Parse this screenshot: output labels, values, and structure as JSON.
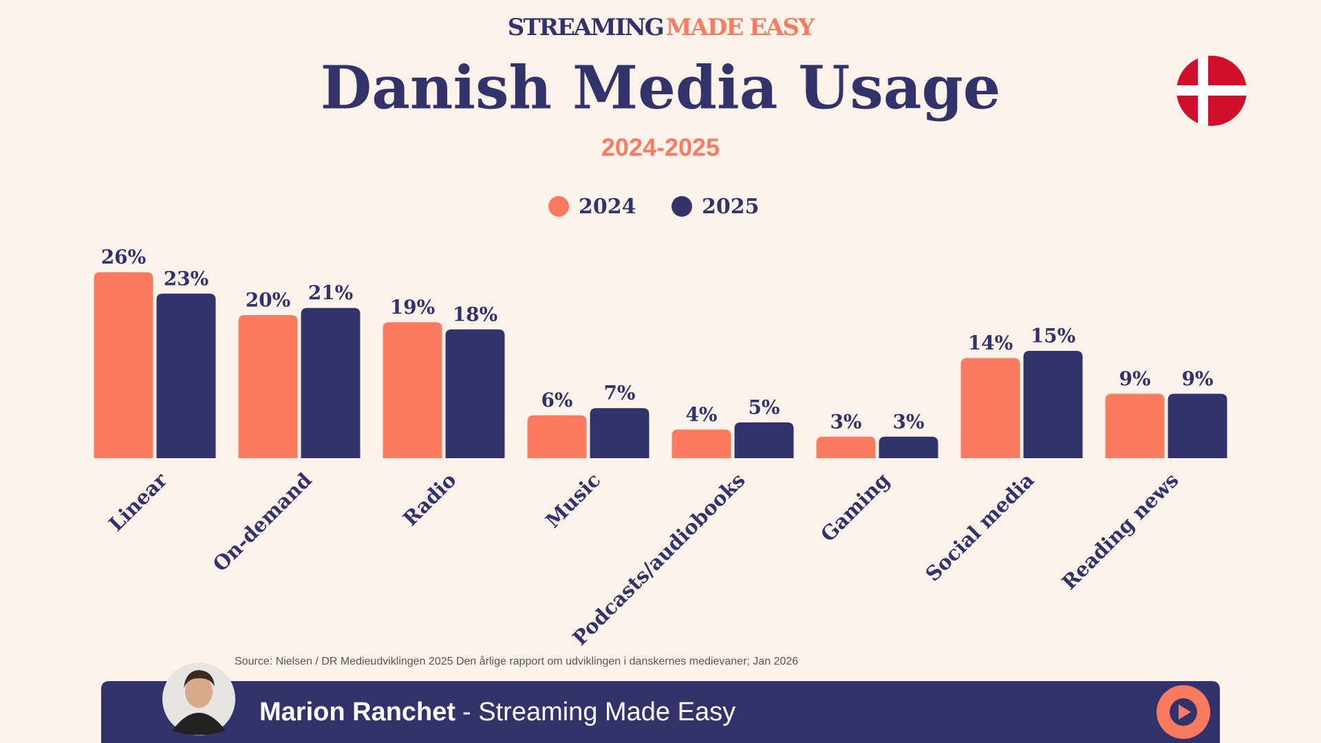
{
  "header": {
    "brand_left": "STREAMING",
    "brand_right": "MADE EASY"
  },
  "chart_data": {
    "type": "bar",
    "title": "Danish Media Usage",
    "subtitle": "2024-2025",
    "categories": [
      "Linear",
      "On-demand",
      "Radio",
      "Music",
      "Podcasts/audiobooks",
      "Gaming",
      "Social media",
      "Reading news"
    ],
    "series": [
      {
        "name": "2024",
        "color": "#fb7b61",
        "values": [
          26,
          20,
          19,
          6,
          4,
          3,
          14,
          9
        ],
        "value_labels": [
          "26%",
          "20%",
          "19%",
          "6%",
          "4%",
          "3%",
          "14%",
          "9%"
        ]
      },
      {
        "name": "2025",
        "color": "#31336a",
        "values": [
          23,
          21,
          18,
          7,
          5,
          3,
          15,
          9
        ],
        "value_labels": [
          "23%",
          "21%",
          "18%",
          "7%",
          "5%",
          "3%",
          "15%",
          "9%"
        ]
      }
    ],
    "ylim": [
      0,
      30
    ],
    "source": "Source: Nielsen / DR Medieudviklingen 2025 Den årlige rapport om udviklingen i danskernes medievaner; Jan 2026"
  },
  "footer": {
    "name": "Marion Ranchet",
    "tagline": "- Streaming Made Easy"
  }
}
